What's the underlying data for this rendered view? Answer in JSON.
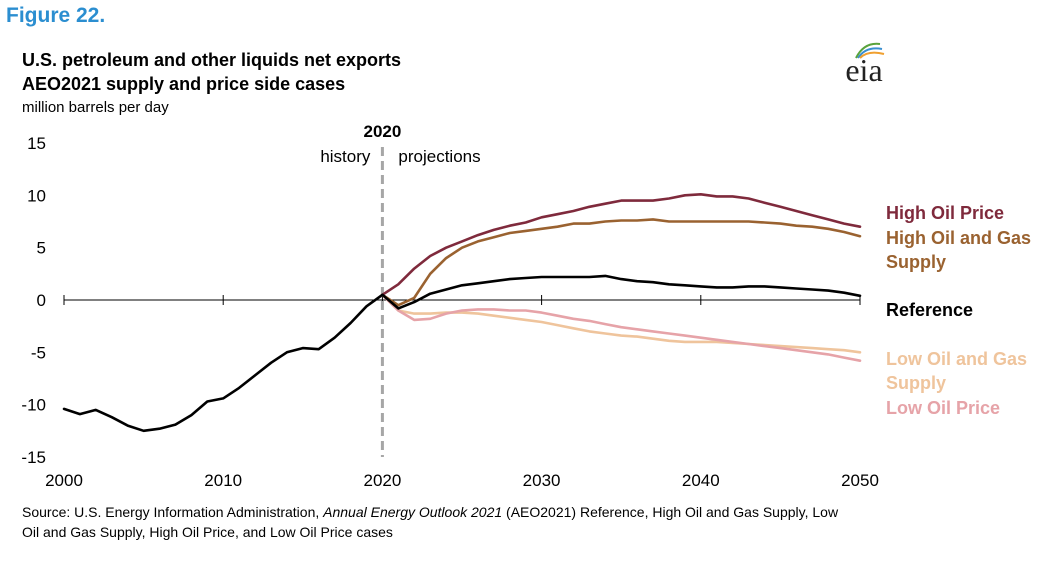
{
  "figure_label": "Figure 22.",
  "chart_data": {
    "type": "line",
    "title": "U.S. petroleum and other liquids net exports",
    "subtitle": "AEO2021 supply and price side cases",
    "units": "million  barrels per day",
    "xlim": [
      2000,
      2050
    ],
    "ylim": [
      -15,
      15
    ],
    "x_ticks": [
      "2000",
      "2010",
      "2020",
      "2030",
      "2040",
      "2050"
    ],
    "y_ticks": [
      "15",
      "10",
      "5",
      "0",
      "-5",
      "-10",
      "-15"
    ],
    "divider": {
      "year_label": "2020",
      "left_label": "history",
      "right_label": "projections",
      "x": 2020
    },
    "series": [
      {
        "name": "High Oil Price",
        "color": "#7f2a3c",
        "x": [
          2020,
          2021,
          2022,
          2023,
          2024,
          2025,
          2026,
          2027,
          2028,
          2029,
          2030,
          2031,
          2032,
          2033,
          2034,
          2035,
          2036,
          2037,
          2038,
          2039,
          2040,
          2041,
          2042,
          2043,
          2044,
          2045,
          2046,
          2047,
          2048,
          2049,
          2050
        ],
        "y": [
          0.5,
          1.5,
          3.0,
          4.2,
          5.0,
          5.6,
          6.2,
          6.7,
          7.1,
          7.4,
          7.9,
          8.2,
          8.5,
          8.9,
          9.2,
          9.5,
          9.5,
          9.5,
          9.7,
          10.0,
          10.1,
          9.9,
          9.9,
          9.7,
          9.3,
          8.9,
          8.5,
          8.1,
          7.7,
          7.3,
          7.0
        ]
      },
      {
        "name": "High Oil and Gas Supply",
        "color": "#9a6230",
        "x": [
          2020,
          2021,
          2022,
          2023,
          2024,
          2025,
          2026,
          2027,
          2028,
          2029,
          2030,
          2031,
          2032,
          2033,
          2034,
          2035,
          2036,
          2037,
          2038,
          2039,
          2040,
          2041,
          2042,
          2043,
          2044,
          2045,
          2046,
          2047,
          2048,
          2049,
          2050
        ],
        "y": [
          0.5,
          -0.5,
          0.2,
          2.5,
          4.0,
          5.0,
          5.6,
          6.0,
          6.4,
          6.6,
          6.8,
          7.0,
          7.3,
          7.3,
          7.5,
          7.6,
          7.6,
          7.7,
          7.5,
          7.5,
          7.5,
          7.5,
          7.5,
          7.5,
          7.4,
          7.3,
          7.1,
          7.0,
          6.8,
          6.5,
          6.1
        ]
      },
      {
        "name": "Reference",
        "color": "#000000",
        "x": [
          2000,
          2001,
          2002,
          2003,
          2004,
          2005,
          2006,
          2007,
          2008,
          2009,
          2010,
          2011,
          2012,
          2013,
          2014,
          2015,
          2016,
          2017,
          2018,
          2019,
          2020,
          2021,
          2022,
          2023,
          2024,
          2025,
          2026,
          2027,
          2028,
          2029,
          2030,
          2031,
          2032,
          2033,
          2034,
          2035,
          2036,
          2037,
          2038,
          2039,
          2040,
          2041,
          2042,
          2043,
          2044,
          2045,
          2046,
          2047,
          2048,
          2049,
          2050
        ],
        "y": [
          -10.4,
          -10.9,
          -10.5,
          -11.2,
          -12.0,
          -12.5,
          -12.3,
          -11.9,
          -11.0,
          -9.7,
          -9.4,
          -8.4,
          -7.2,
          -6.0,
          -5.0,
          -4.6,
          -4.7,
          -3.6,
          -2.2,
          -0.6,
          0.5,
          -0.8,
          -0.2,
          0.6,
          1.0,
          1.4,
          1.6,
          1.8,
          2.0,
          2.1,
          2.2,
          2.2,
          2.2,
          2.2,
          2.3,
          2.0,
          1.8,
          1.7,
          1.5,
          1.4,
          1.3,
          1.2,
          1.2,
          1.3,
          1.3,
          1.2,
          1.1,
          1.0,
          0.9,
          0.7,
          0.4
        ]
      },
      {
        "name": "Low Oil and Gas Supply",
        "color": "#efc49c",
        "x": [
          2020,
          2021,
          2022,
          2023,
          2024,
          2025,
          2026,
          2027,
          2028,
          2029,
          2030,
          2031,
          2032,
          2033,
          2034,
          2035,
          2036,
          2037,
          2038,
          2039,
          2040,
          2041,
          2042,
          2043,
          2044,
          2045,
          2046,
          2047,
          2048,
          2049,
          2050
        ],
        "y": [
          0.5,
          -1.0,
          -1.3,
          -1.3,
          -1.2,
          -1.2,
          -1.3,
          -1.5,
          -1.7,
          -1.9,
          -2.1,
          -2.4,
          -2.7,
          -3.0,
          -3.2,
          -3.4,
          -3.5,
          -3.7,
          -3.9,
          -4.0,
          -4.0,
          -4.0,
          -4.1,
          -4.2,
          -4.3,
          -4.4,
          -4.5,
          -4.6,
          -4.7,
          -4.8,
          -5.0
        ]
      },
      {
        "name": "Low Oil Price",
        "color": "#e6a3a8",
        "x": [
          2020,
          2021,
          2022,
          2023,
          2024,
          2025,
          2026,
          2027,
          2028,
          2029,
          2030,
          2031,
          2032,
          2033,
          2034,
          2035,
          2036,
          2037,
          2038,
          2039,
          2040,
          2041,
          2042,
          2043,
          2044,
          2045,
          2046,
          2047,
          2048,
          2049,
          2050
        ],
        "y": [
          0.5,
          -1.0,
          -1.9,
          -1.8,
          -1.3,
          -1.0,
          -0.9,
          -0.9,
          -1.0,
          -1.0,
          -1.2,
          -1.5,
          -1.8,
          -2.0,
          -2.3,
          -2.6,
          -2.8,
          -3.0,
          -3.2,
          -3.4,
          -3.6,
          -3.8,
          -4.0,
          -4.2,
          -4.4,
          -4.6,
          -4.8,
          -5.0,
          -5.2,
          -5.5,
          -5.8
        ]
      }
    ],
    "grid": false
  },
  "legend": {
    "high_oil_price": "High Oil Price",
    "high_oil_gas_1": "High Oil and Gas",
    "high_oil_gas_2": "Supply",
    "reference": "Reference",
    "low_oil_gas_1": "Low Oil and Gas",
    "low_oil_gas_2": "Supply",
    "low_oil_price": "Low Oil Price"
  },
  "logo": {
    "text": "eia"
  },
  "source": {
    "prefix": "Source: U.S. Energy Information Administration, ",
    "publication": "Annual Energy Outlook 2021",
    "suffix": " (AEO2021) Reference, High Oil and Gas Supply, Low Oil and Gas Supply, High Oil Price, and Low Oil Price cases"
  }
}
